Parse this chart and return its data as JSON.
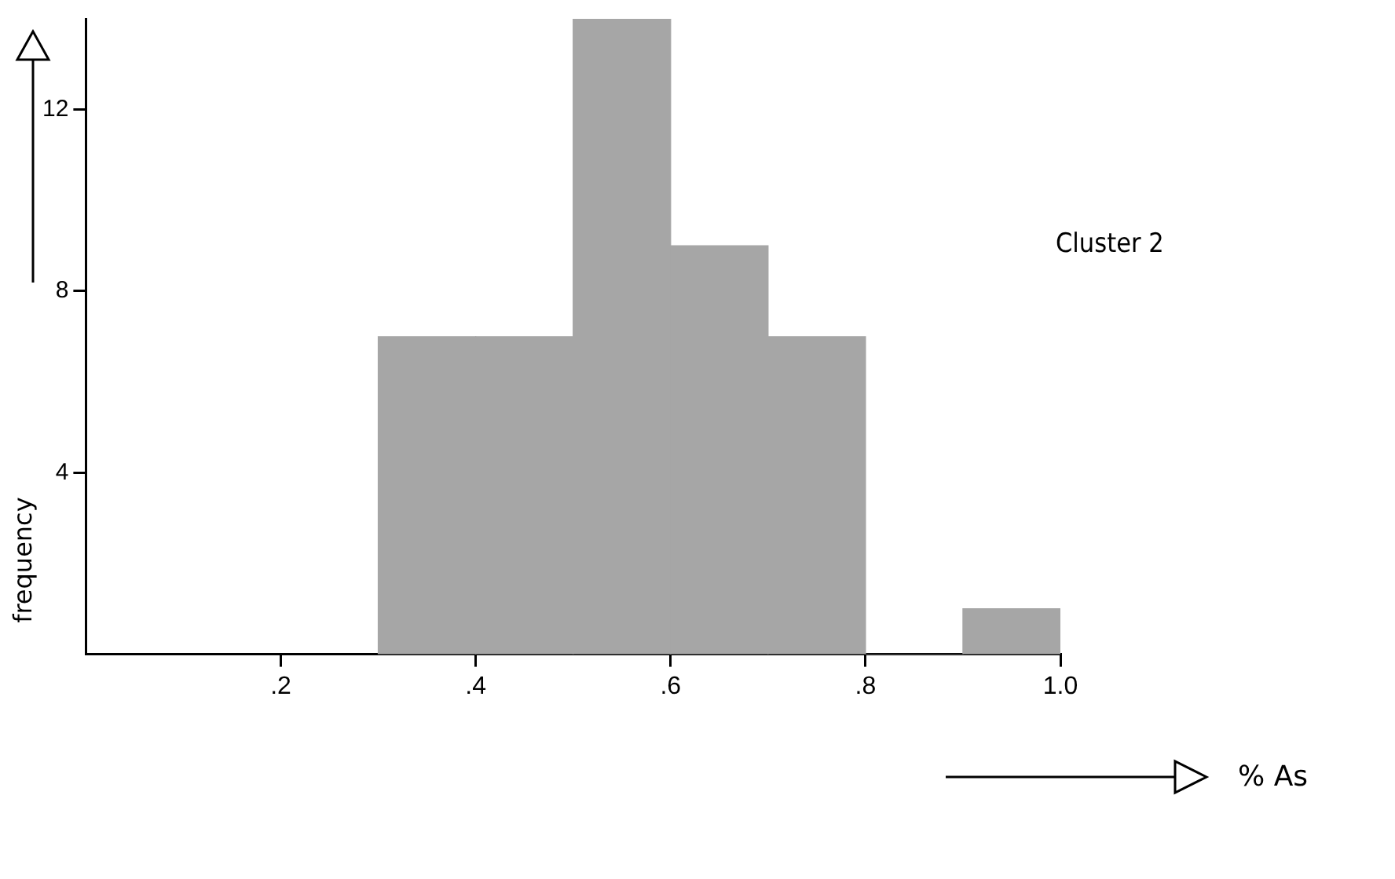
{
  "chart_data": {
    "type": "histogram",
    "ylabel": "frequency",
    "annotations": [
      "Cluster 2",
      "% As"
    ],
    "bins": [
      0.3,
      0.4,
      0.5,
      0.6,
      0.7,
      0.8,
      0.9,
      1.0
    ],
    "values": [
      7,
      7,
      14,
      9,
      7,
      0,
      1
    ],
    "color": "#a6a6a6",
    "xlim": [
      0,
      1.0
    ],
    "xticks": [
      {
        "value": 0.2,
        "label": ".2"
      },
      {
        "value": 0.4,
        "label": ".4"
      },
      {
        "value": 0.6,
        "label": ".6"
      },
      {
        "value": 0.8,
        "label": ".8"
      },
      {
        "value": 1.0,
        "label": "1.0"
      }
    ],
    "ylim": [
      0,
      14
    ],
    "yticks": [
      4,
      8,
      12
    ],
    "grid": false,
    "legend": false
  }
}
